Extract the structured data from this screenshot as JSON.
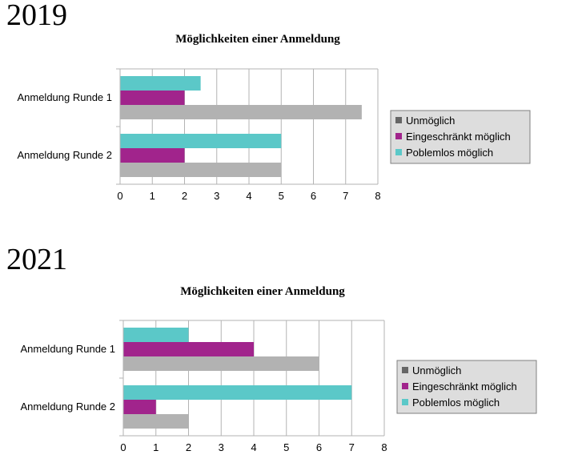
{
  "colors": {
    "Unmöglich": "#b2b2b2",
    "Eingeschränkt möglich": "#a1248c",
    "Poblemlos möglich": "#5bc8c8",
    "legend_unmoeglich_swatch": "#666666"
  },
  "chart_data": [
    {
      "type": "bar",
      "orientation": "horizontal",
      "year_label": "2019",
      "title": "Möglichkeiten einer Anmeldung",
      "categories": [
        "Anmeldung Runde 1",
        "Anmeldung Runde 2"
      ],
      "series": [
        {
          "name": "Unmöglich",
          "values": [
            7.5,
            5
          ]
        },
        {
          "name": "Eingeschränkt möglich",
          "values": [
            2,
            2
          ]
        },
        {
          "name": "Poblemlos möglich",
          "values": [
            2.5,
            5
          ]
        }
      ],
      "xlim": [
        0,
        8
      ],
      "xticks": [
        "0",
        "1",
        "2",
        "3",
        "4",
        "5",
        "6",
        "7",
        "8"
      ],
      "grid": true,
      "legend": "right"
    },
    {
      "type": "bar",
      "orientation": "horizontal",
      "year_label": "2021",
      "title": "Möglichkeiten einer Anmeldung",
      "categories": [
        "Anmeldung Runde 1",
        "Anmeldung Runde 2"
      ],
      "series": [
        {
          "name": "Unmöglich",
          "values": [
            6,
            2
          ]
        },
        {
          "name": "Eingeschränkt möglich",
          "values": [
            4,
            1
          ]
        },
        {
          "name": "Poblemlos möglich",
          "values": [
            2,
            7
          ]
        }
      ],
      "xlim": [
        0,
        8
      ],
      "xticks": [
        "0",
        "1",
        "2",
        "3",
        "4",
        "5",
        "6",
        "7",
        "8"
      ],
      "grid": true,
      "legend": "right"
    }
  ]
}
